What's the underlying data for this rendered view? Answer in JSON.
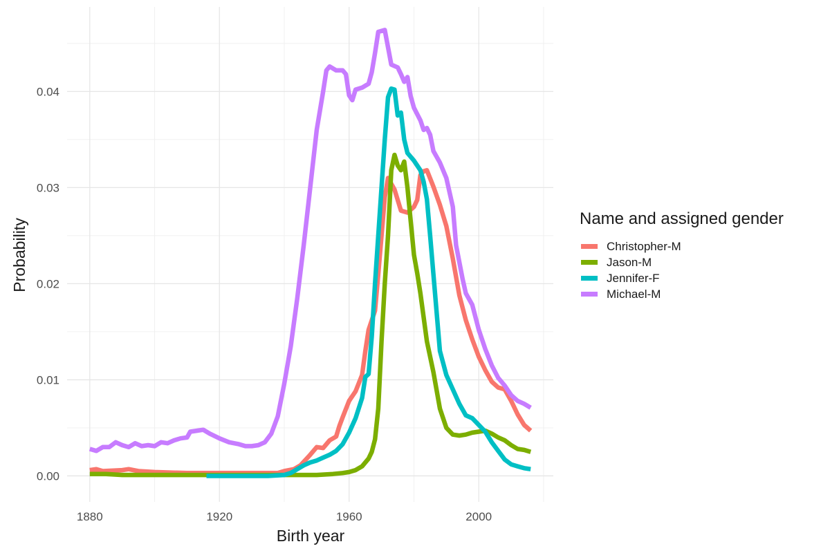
{
  "chart_data": {
    "type": "line",
    "xlabel": "Birth year",
    "ylabel": "Probability",
    "xlim": [
      1873,
      2023
    ],
    "ylim": [
      -0.0027,
      0.0488
    ],
    "x_ticks": [
      1880,
      1920,
      1960,
      2000
    ],
    "y_ticks": [
      0.0,
      0.01,
      0.02,
      0.03,
      0.04
    ],
    "y_tick_labels": [
      "0.00",
      "0.01",
      "0.02",
      "0.03",
      "0.04"
    ],
    "grid": true,
    "legend_position": "right",
    "legend_title": "Name and assigned gender",
    "series": [
      {
        "name": "Christopher-M",
        "color": "#F8766D",
        "points": [
          [
            1880,
            0.0006
          ],
          [
            1882,
            0.0007
          ],
          [
            1884,
            0.0005
          ],
          [
            1890,
            0.0006
          ],
          [
            1892,
            0.0007
          ],
          [
            1895,
            0.0005
          ],
          [
            1900,
            0.0004
          ],
          [
            1910,
            0.0003
          ],
          [
            1920,
            0.0003
          ],
          [
            1930,
            0.0003
          ],
          [
            1938,
            0.0003
          ],
          [
            1940,
            0.0005
          ],
          [
            1943,
            0.0007
          ],
          [
            1945,
            0.0011
          ],
          [
            1948,
            0.0022
          ],
          [
            1950,
            0.003
          ],
          [
            1952,
            0.0029
          ],
          [
            1954,
            0.0037
          ],
          [
            1956,
            0.0041
          ],
          [
            1957,
            0.0052
          ],
          [
            1958,
            0.0061
          ],
          [
            1960,
            0.0078
          ],
          [
            1962,
            0.0088
          ],
          [
            1964,
            0.0105
          ],
          [
            1965,
            0.013
          ],
          [
            1966,
            0.0152
          ],
          [
            1968,
            0.0172
          ],
          [
            1969,
            0.021
          ],
          [
            1970,
            0.025
          ],
          [
            1971,
            0.029
          ],
          [
            1972,
            0.031
          ],
          [
            1974,
            0.0298
          ],
          [
            1976,
            0.0276
          ],
          [
            1978,
            0.0274
          ],
          [
            1980,
            0.028
          ],
          [
            1981,
            0.0287
          ],
          [
            1982,
            0.0313
          ],
          [
            1983,
            0.0317
          ],
          [
            1984,
            0.0318
          ],
          [
            1986,
            0.0301
          ],
          [
            1988,
            0.0282
          ],
          [
            1990,
            0.026
          ],
          [
            1992,
            0.0226
          ],
          [
            1994,
            0.0188
          ],
          [
            1996,
            0.0162
          ],
          [
            1998,
            0.0142
          ],
          [
            2000,
            0.0124
          ],
          [
            2002,
            0.011
          ],
          [
            2004,
            0.0098
          ],
          [
            2006,
            0.0092
          ],
          [
            2008,
            0.009
          ],
          [
            2010,
            0.0078
          ],
          [
            2012,
            0.0064
          ],
          [
            2014,
            0.0053
          ],
          [
            2016,
            0.0047
          ]
        ]
      },
      {
        "name": "Jason-M",
        "color": "#7CAE00",
        "points": [
          [
            1880,
            0.0002
          ],
          [
            1885,
            0.0002
          ],
          [
            1890,
            0.0001
          ],
          [
            1900,
            0.0001
          ],
          [
            1910,
            0.0001
          ],
          [
            1920,
            0.0001
          ],
          [
            1930,
            0.0001
          ],
          [
            1940,
            0.0001
          ],
          [
            1950,
            0.0001
          ],
          [
            1955,
            0.0002
          ],
          [
            1958,
            0.0003
          ],
          [
            1960,
            0.0004
          ],
          [
            1962,
            0.0006
          ],
          [
            1964,
            0.001
          ],
          [
            1966,
            0.0018
          ],
          [
            1967,
            0.0025
          ],
          [
            1968,
            0.0038
          ],
          [
            1969,
            0.007
          ],
          [
            1970,
            0.014
          ],
          [
            1971,
            0.02
          ],
          [
            1972,
            0.025
          ],
          [
            1973,
            0.0318
          ],
          [
            1974,
            0.0334
          ],
          [
            1975,
            0.0323
          ],
          [
            1976,
            0.0318
          ],
          [
            1977,
            0.0327
          ],
          [
            1978,
            0.03
          ],
          [
            1979,
            0.0265
          ],
          [
            1980,
            0.023
          ],
          [
            1981,
            0.0211
          ],
          [
            1982,
            0.019
          ],
          [
            1984,
            0.014
          ],
          [
            1986,
            0.0108
          ],
          [
            1988,
            0.007
          ],
          [
            1990,
            0.005
          ],
          [
            1992,
            0.0043
          ],
          [
            1994,
            0.0042
          ],
          [
            1996,
            0.0043
          ],
          [
            1998,
            0.0045
          ],
          [
            2000,
            0.0046
          ],
          [
            2002,
            0.0047
          ],
          [
            2004,
            0.0044
          ],
          [
            2006,
            0.004
          ],
          [
            2008,
            0.0037
          ],
          [
            2010,
            0.0032
          ],
          [
            2012,
            0.0028
          ],
          [
            2014,
            0.0027
          ],
          [
            2016,
            0.0025
          ]
        ]
      },
      {
        "name": "Jennifer-F",
        "color": "#00BFC4",
        "points": [
          [
            1916,
            0.0
          ],
          [
            1925,
            0.0
          ],
          [
            1935,
            0.0
          ],
          [
            1940,
            0.0001
          ],
          [
            1942,
            0.0003
          ],
          [
            1944,
            0.0007
          ],
          [
            1946,
            0.0011
          ],
          [
            1948,
            0.0014
          ],
          [
            1950,
            0.0016
          ],
          [
            1952,
            0.0019
          ],
          [
            1954,
            0.0022
          ],
          [
            1956,
            0.0026
          ],
          [
            1958,
            0.0033
          ],
          [
            1960,
            0.0045
          ],
          [
            1962,
            0.006
          ],
          [
            1964,
            0.0081
          ],
          [
            1965,
            0.0103
          ],
          [
            1966,
            0.0106
          ],
          [
            1967,
            0.0145
          ],
          [
            1968,
            0.02
          ],
          [
            1969,
            0.025
          ],
          [
            1970,
            0.03
          ],
          [
            1971,
            0.035
          ],
          [
            1972,
            0.0394
          ],
          [
            1973,
            0.0403
          ],
          [
            1974,
            0.0402
          ],
          [
            1975,
            0.0375
          ],
          [
            1976,
            0.0378
          ],
          [
            1977,
            0.035
          ],
          [
            1978,
            0.0336
          ],
          [
            1980,
            0.0328
          ],
          [
            1982,
            0.0318
          ],
          [
            1983,
            0.0306
          ],
          [
            1984,
            0.0288
          ],
          [
            1985,
            0.025
          ],
          [
            1986,
            0.021
          ],
          [
            1987,
            0.017
          ],
          [
            1988,
            0.013
          ],
          [
            1990,
            0.0105
          ],
          [
            1992,
            0.009
          ],
          [
            1994,
            0.0075
          ],
          [
            1996,
            0.0063
          ],
          [
            1998,
            0.006
          ],
          [
            2000,
            0.0053
          ],
          [
            2002,
            0.0046
          ],
          [
            2004,
            0.0035
          ],
          [
            2006,
            0.0026
          ],
          [
            2008,
            0.0017
          ],
          [
            2010,
            0.0012
          ],
          [
            2012,
            0.001
          ],
          [
            2014,
            0.0008
          ],
          [
            2016,
            0.0007
          ]
        ]
      },
      {
        "name": "Michael-M",
        "color": "#C77CFF",
        "points": [
          [
            1880,
            0.0028
          ],
          [
            1882,
            0.0026
          ],
          [
            1884,
            0.003
          ],
          [
            1886,
            0.003
          ],
          [
            1888,
            0.0035
          ],
          [
            1890,
            0.0032
          ],
          [
            1892,
            0.003
          ],
          [
            1894,
            0.0034
          ],
          [
            1896,
            0.0031
          ],
          [
            1898,
            0.0032
          ],
          [
            1900,
            0.0031
          ],
          [
            1902,
            0.0035
          ],
          [
            1904,
            0.0034
          ],
          [
            1906,
            0.0037
          ],
          [
            1908,
            0.0039
          ],
          [
            1910,
            0.004
          ],
          [
            1911,
            0.0046
          ],
          [
            1913,
            0.0047
          ],
          [
            1915,
            0.0048
          ],
          [
            1917,
            0.0044
          ],
          [
            1920,
            0.0039
          ],
          [
            1923,
            0.0035
          ],
          [
            1926,
            0.0033
          ],
          [
            1928,
            0.0031
          ],
          [
            1930,
            0.0031
          ],
          [
            1932,
            0.0032
          ],
          [
            1934,
            0.0035
          ],
          [
            1936,
            0.0044
          ],
          [
            1938,
            0.0062
          ],
          [
            1940,
            0.0096
          ],
          [
            1942,
            0.0135
          ],
          [
            1944,
            0.0185
          ],
          [
            1946,
            0.024
          ],
          [
            1948,
            0.03
          ],
          [
            1950,
            0.036
          ],
          [
            1952,
            0.04
          ],
          [
            1953,
            0.0422
          ],
          [
            1954,
            0.0426
          ],
          [
            1956,
            0.0422
          ],
          [
            1958,
            0.0422
          ],
          [
            1959,
            0.0418
          ],
          [
            1960,
            0.0396
          ],
          [
            1961,
            0.0391
          ],
          [
            1962,
            0.0402
          ],
          [
            1964,
            0.0404
          ],
          [
            1966,
            0.0408
          ],
          [
            1967,
            0.042
          ],
          [
            1968,
            0.044
          ],
          [
            1969,
            0.0462
          ],
          [
            1971,
            0.0464
          ],
          [
            1972,
            0.0446
          ],
          [
            1973,
            0.0428
          ],
          [
            1975,
            0.0425
          ],
          [
            1976,
            0.0418
          ],
          [
            1977,
            0.041
          ],
          [
            1978,
            0.0415
          ],
          [
            1979,
            0.0395
          ],
          [
            1980,
            0.0383
          ],
          [
            1982,
            0.037
          ],
          [
            1983,
            0.036
          ],
          [
            1984,
            0.0362
          ],
          [
            1985,
            0.0355
          ],
          [
            1986,
            0.0338
          ],
          [
            1988,
            0.0326
          ],
          [
            1990,
            0.031
          ],
          [
            1992,
            0.028
          ],
          [
            1993,
            0.024
          ],
          [
            1995,
            0.0205
          ],
          [
            1996,
            0.019
          ],
          [
            1998,
            0.0178
          ],
          [
            2000,
            0.0152
          ],
          [
            2002,
            0.0132
          ],
          [
            2004,
            0.0115
          ],
          [
            2006,
            0.0102
          ],
          [
            2008,
            0.0094
          ],
          [
            2010,
            0.0084
          ],
          [
            2012,
            0.0078
          ],
          [
            2014,
            0.0075
          ],
          [
            2016,
            0.0071
          ]
        ]
      }
    ]
  }
}
